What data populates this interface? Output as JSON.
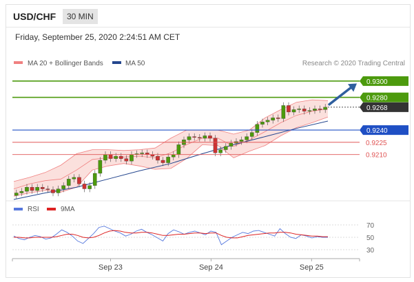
{
  "header": {
    "pair": "USD/CHF",
    "timeframe": "30 MIN"
  },
  "datetime": "Friday, September 25, 2020 2:24:51 AM CET",
  "legend": {
    "bollinger_label": "MA 20 + Bollinger Bands",
    "ma50_label": "MA 50",
    "rsi_label": "RSI",
    "ma9_label": "9MA"
  },
  "copyright": "Research © 2020 Trading Central",
  "colors": {
    "bollinger": "#f08080",
    "bollinger_fill": "#f9d3cf",
    "ma50": "#24468e",
    "resistance": "#4c9a0d",
    "current": "#333333",
    "pivot": "#1f4fc4",
    "support": "#e05555",
    "arrow": "#2f5f9e",
    "rsi": "#5577dd",
    "ma9": "#dd2222",
    "candle_up": "#4c9a0d",
    "candle_down": "#cc3333"
  },
  "chart_data": [
    {
      "type": "line",
      "description_free": true,
      "x_ticks": [
        "Sep 23",
        "Sep 24",
        "Sep 25"
      ],
      "ylim": [
        0.9155,
        0.9315
      ],
      "levels": [
        {
          "value": 0.93,
          "label": "0.9300",
          "kind": "resistance"
        },
        {
          "value": 0.928,
          "label": "0.9280",
          "kind": "resistance"
        },
        {
          "value": 0.9268,
          "label": "0.9268",
          "kind": "current"
        },
        {
          "value": 0.924,
          "label": "0.9240",
          "kind": "pivot"
        },
        {
          "value": 0.9225,
          "label": "0.9225",
          "kind": "support"
        },
        {
          "value": 0.921,
          "label": "0.9210",
          "kind": "support"
        }
      ],
      "series": [
        {
          "name": "MA 20 + Bollinger Bands",
          "t": [
            0,
            5,
            10,
            15,
            20,
            25,
            30,
            35,
            40,
            45,
            50,
            55,
            60,
            65,
            70,
            75,
            80,
            85,
            90,
            95,
            100
          ],
          "mid": [
            0.9168,
            0.9174,
            0.9178,
            0.918,
            0.9191,
            0.9204,
            0.9206,
            0.9207,
            0.9208,
            0.9206,
            0.9212,
            0.9222,
            0.923,
            0.923,
            0.922,
            0.9228,
            0.9238,
            0.9249,
            0.9258,
            0.9263,
            0.9266
          ],
          "upper": [
            0.9177,
            0.9182,
            0.9188,
            0.9197,
            0.9211,
            0.9216,
            0.9216,
            0.9215,
            0.9216,
            0.9218,
            0.923,
            0.924,
            0.924,
            0.924,
            0.9235,
            0.924,
            0.9255,
            0.9265,
            0.9274,
            0.9277,
            0.9276
          ],
          "lower": [
            0.9159,
            0.9163,
            0.9166,
            0.9164,
            0.917,
            0.9191,
            0.9196,
            0.9199,
            0.9196,
            0.9192,
            0.9193,
            0.9205,
            0.9222,
            0.9221,
            0.9206,
            0.9214,
            0.9221,
            0.9233,
            0.9243,
            0.9249,
            0.9256
          ]
        },
        {
          "name": "MA 50",
          "t": [
            0,
            10,
            20,
            30,
            40,
            50,
            60,
            70,
            80,
            90,
            100
          ],
          "values": [
            0.9155,
            0.9163,
            0.917,
            0.918,
            0.919,
            0.9199,
            0.9211,
            0.9222,
            0.9232,
            0.9242,
            0.9251
          ]
        }
      ],
      "close": [
        0.9163,
        0.9165,
        0.917,
        0.9166,
        0.917,
        0.9168,
        0.9167,
        0.9163,
        0.9168,
        0.9172,
        0.918,
        0.9182,
        0.9174,
        0.9168,
        0.9172,
        0.9187,
        0.9203,
        0.921,
        0.9205,
        0.9208,
        0.9205,
        0.9202,
        0.921,
        0.9211,
        0.9212,
        0.921,
        0.9208,
        0.9203,
        0.92,
        0.9207,
        0.921,
        0.9222,
        0.9228,
        0.9232,
        0.9231,
        0.923,
        0.9233,
        0.923,
        0.9212,
        0.9216,
        0.922,
        0.9224,
        0.9226,
        0.9228,
        0.9232,
        0.9237,
        0.9247,
        0.925,
        0.9252,
        0.9255,
        0.9254,
        0.927,
        0.9262,
        0.9265,
        0.9266,
        0.9263,
        0.9264,
        0.9266,
        0.9265,
        0.9268
      ]
    },
    {
      "type": "line",
      "title": "",
      "yticks": [
        70,
        50,
        30
      ],
      "ylim": [
        20,
        80
      ],
      "series": [
        {
          "name": "RSI",
          "values": [
            52,
            48,
            46,
            50,
            53,
            51,
            47,
            49,
            55,
            62,
            58,
            52,
            44,
            40,
            48,
            56,
            66,
            68,
            64,
            60,
            57,
            52,
            55,
            60,
            63,
            58,
            54,
            49,
            44,
            56,
            62,
            59,
            55,
            58,
            60,
            57,
            54,
            60,
            58,
            38,
            44,
            50,
            54,
            58,
            56,
            60,
            61,
            58,
            55,
            52,
            64,
            56,
            50,
            48,
            54,
            52,
            49,
            51,
            50,
            50
          ]
        },
        {
          "name": "9MA",
          "values": [
            50,
            50,
            49,
            49,
            50,
            50,
            50,
            50,
            51,
            53,
            55,
            55,
            53,
            50,
            49,
            50,
            53,
            57,
            60,
            61,
            60,
            58,
            57,
            57,
            58,
            58,
            57,
            55,
            53,
            53,
            54,
            55,
            55,
            56,
            57,
            57,
            56,
            57,
            57,
            53,
            50,
            49,
            49,
            51,
            53,
            54,
            55,
            56,
            57,
            57,
            58,
            58,
            57,
            55,
            54,
            53,
            52,
            52,
            51,
            51
          ]
        }
      ]
    }
  ]
}
